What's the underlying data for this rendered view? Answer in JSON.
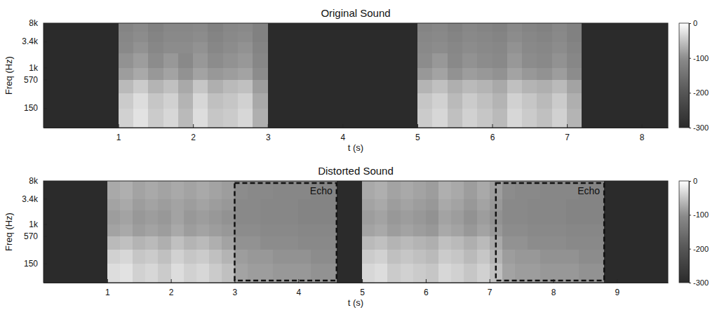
{
  "chart_data": [
    {
      "type": "heatmap",
      "title": "Original Sound",
      "x_label": "t (s)",
      "y_label": "Freq (Hz)",
      "xlim": [
        0,
        8.35
      ],
      "xticks": [
        1,
        2,
        3,
        4,
        5,
        6,
        7,
        8
      ],
      "ylim": [
        60,
        8000
      ],
      "log": "y",
      "yticks": [
        150,
        570,
        {
          "value": 1000,
          "label": "1k"
        },
        {
          "value": 3400,
          "label": "3.4k"
        },
        {
          "value": 8000,
          "label": "8k"
        }
      ],
      "x_edges": [
        0,
        1.0,
        1.2,
        1.4,
        1.6,
        1.8,
        2.0,
        2.2,
        2.4,
        2.6,
        2.8,
        3.0,
        5.0,
        5.2,
        5.4,
        5.6,
        5.8,
        6.0,
        6.2,
        6.4,
        6.6,
        6.8,
        7.0,
        7.2,
        8.35
      ],
      "y_edges": [
        60,
        150,
        300,
        570,
        1000,
        2000,
        3400,
        5500,
        8000
      ],
      "cells": [
        [
          -300,
          -40,
          -25,
          -45,
          -35,
          -60,
          -30,
          -50,
          -45,
          -35,
          -70,
          -300,
          -45,
          -35,
          -55,
          -40,
          -50,
          -60,
          -35,
          -45,
          -55,
          -40,
          -65,
          -300
        ],
        [
          -300,
          -45,
          -30,
          -50,
          -40,
          -65,
          -35,
          -55,
          -50,
          -40,
          -75,
          -300,
          -50,
          -40,
          -60,
          -45,
          -55,
          -65,
          -40,
          -50,
          -60,
          -45,
          -70,
          -300
        ],
        [
          -300,
          -60,
          -45,
          -65,
          -55,
          -75,
          -50,
          -70,
          -60,
          -55,
          -85,
          -300,
          -65,
          -55,
          -70,
          -60,
          -65,
          -75,
          -55,
          -65,
          -70,
          -60,
          -80,
          -300
        ],
        [
          -300,
          -85,
          -75,
          -90,
          -80,
          -95,
          -80,
          -90,
          -85,
          -80,
          -100,
          -300,
          -90,
          -80,
          -95,
          -85,
          -90,
          -95,
          -80,
          -90,
          -95,
          -85,
          -100,
          -300
        ],
        [
          -300,
          -95,
          -85,
          -100,
          -90,
          -105,
          -90,
          -100,
          -95,
          -90,
          -110,
          -300,
          -100,
          -90,
          -105,
          -95,
          -100,
          -105,
          -90,
          -100,
          -105,
          -95,
          -110,
          -300
        ],
        [
          -300,
          -105,
          -95,
          -110,
          -100,
          -100,
          -95,
          -110,
          -100,
          -95,
          -115,
          -300,
          -105,
          -100,
          -110,
          -100,
          -105,
          -110,
          -95,
          -105,
          -110,
          -100,
          -115,
          -300
        ],
        [
          -300,
          -110,
          -100,
          -115,
          -105,
          -105,
          -100,
          -115,
          -105,
          -100,
          -120,
          -300,
          -110,
          -105,
          -115,
          -105,
          -110,
          -115,
          -100,
          -110,
          -115,
          -105,
          -120,
          -300
        ],
        [
          -300,
          -115,
          -105,
          -120,
          -110,
          -110,
          -105,
          -120,
          -110,
          -105,
          -120,
          -300,
          -115,
          -110,
          -120,
          -110,
          -115,
          -120,
          -105,
          -115,
          -120,
          -110,
          -120,
          -300
        ]
      ],
      "colorbar_lim": [
        -300,
        0
      ],
      "colorbar_ticks": [
        0,
        -100,
        -200,
        -300
      ]
    },
    {
      "type": "heatmap",
      "title": "Distorted Sound",
      "x_label": "t (s)",
      "y_label": "Freq (Hz)",
      "xlim": [
        0,
        9.8
      ],
      "xticks": [
        1,
        2,
        3,
        4,
        5,
        6,
        7,
        8,
        9
      ],
      "ylim": [
        60,
        8000
      ],
      "log": "y",
      "yticks": [
        150,
        570,
        {
          "value": 1000,
          "label": "1k"
        },
        {
          "value": 3400,
          "label": "3.4k"
        },
        {
          "value": 8000,
          "label": "8k"
        }
      ],
      "x_edges": [
        0,
        1.0,
        1.2,
        1.4,
        1.6,
        1.8,
        2.0,
        2.2,
        2.4,
        2.6,
        2.8,
        3.0,
        3.2,
        3.4,
        3.6,
        3.8,
        4.0,
        4.2,
        4.4,
        4.6,
        5.0,
        5.2,
        5.4,
        5.6,
        5.8,
        6.0,
        6.2,
        6.4,
        6.6,
        6.8,
        7.0,
        7.2,
        7.4,
        7.6,
        7.8,
        8.0,
        8.2,
        8.4,
        8.6,
        8.8,
        9.8
      ],
      "y_edges": [
        60,
        150,
        300,
        570,
        1000,
        2000,
        3400,
        5500,
        8000
      ],
      "cells": [
        [
          -300,
          -30,
          -25,
          -40,
          -35,
          -45,
          -30,
          -40,
          -35,
          -45,
          -55,
          -80,
          -85,
          -85,
          -90,
          -90,
          -90,
          -95,
          -95,
          -300,
          -35,
          -30,
          -45,
          -40,
          -45,
          -50,
          -35,
          -40,
          -50,
          -40,
          -55,
          -80,
          -85,
          -85,
          -90,
          -90,
          -90,
          -95,
          -95,
          -300
        ],
        [
          -300,
          -40,
          -35,
          -50,
          -45,
          -55,
          -40,
          -50,
          -45,
          -55,
          -65,
          -85,
          -90,
          -90,
          -95,
          -95,
          -95,
          -100,
          -100,
          -300,
          -45,
          -40,
          -55,
          -50,
          -55,
          -60,
          -45,
          -50,
          -60,
          -50,
          -65,
          -85,
          -90,
          -90,
          -95,
          -95,
          -95,
          -100,
          -100,
          -300
        ],
        [
          -300,
          -60,
          -55,
          -65,
          -60,
          -70,
          -55,
          -65,
          -60,
          -70,
          -80,
          -95,
          -95,
          -100,
          -100,
          -100,
          -105,
          -105,
          -105,
          -300,
          -60,
          -55,
          -65,
          -60,
          -65,
          -70,
          -55,
          -60,
          -70,
          -60,
          -75,
          -95,
          -95,
          -100,
          -100,
          -100,
          -105,
          -105,
          -105,
          -300
        ],
        [
          -300,
          -80,
          -75,
          -85,
          -80,
          -85,
          -75,
          -85,
          -80,
          -85,
          -90,
          -100,
          -100,
          -105,
          -105,
          -105,
          -110,
          -110,
          -110,
          -300,
          -80,
          -75,
          -85,
          -80,
          -85,
          -90,
          -75,
          -80,
          -90,
          -80,
          -90,
          -100,
          -100,
          -105,
          -105,
          -105,
          -110,
          -110,
          -110,
          -300
        ],
        [
          -300,
          -85,
          -80,
          -90,
          -85,
          -90,
          -80,
          -90,
          -85,
          -90,
          -95,
          -105,
          -105,
          -110,
          -110,
          -110,
          -115,
          -115,
          -115,
          -300,
          -85,
          -80,
          -90,
          -85,
          -90,
          -95,
          -80,
          -85,
          -95,
          -85,
          -95,
          -105,
          -105,
          -110,
          -110,
          -110,
          -115,
          -115,
          -115,
          -300
        ],
        [
          -300,
          -80,
          -75,
          -85,
          -80,
          -85,
          -80,
          -85,
          -80,
          -85,
          -90,
          -105,
          -105,
          -110,
          -110,
          -110,
          -115,
          -115,
          -115,
          -300,
          -80,
          -75,
          -85,
          -80,
          -85,
          -90,
          -75,
          -80,
          -90,
          -80,
          -90,
          -105,
          -105,
          -110,
          -110,
          -110,
          -115,
          -115,
          -115,
          -300
        ],
        [
          -300,
          -75,
          -70,
          -80,
          -75,
          -80,
          -75,
          -80,
          -75,
          -80,
          -85,
          -100,
          -105,
          -105,
          -110,
          -110,
          -110,
          -115,
          -115,
          -300,
          -75,
          -70,
          -80,
          -75,
          -80,
          -85,
          -70,
          -75,
          -85,
          -75,
          -85,
          -100,
          -105,
          -105,
          -110,
          -110,
          -110,
          -115,
          -115,
          -300
        ],
        [
          -300,
          -75,
          -70,
          -80,
          -75,
          -80,
          -75,
          -80,
          -75,
          -80,
          -85,
          -100,
          -105,
          -105,
          -110,
          -110,
          -110,
          -115,
          -115,
          -300,
          -75,
          -70,
          -80,
          -75,
          -80,
          -85,
          -70,
          -75,
          -85,
          -75,
          -85,
          -100,
          -105,
          -105,
          -110,
          -110,
          -110,
          -115,
          -115,
          -300
        ]
      ],
      "colorbar_lim": [
        -300,
        0
      ],
      "colorbar_ticks": [
        0,
        -100,
        -200,
        -300
      ],
      "annotations": [
        {
          "text": "Echo",
          "x": [
            3.0,
            4.6
          ]
        },
        {
          "text": "Echo",
          "x": [
            7.1,
            8.8
          ]
        }
      ]
    }
  ]
}
